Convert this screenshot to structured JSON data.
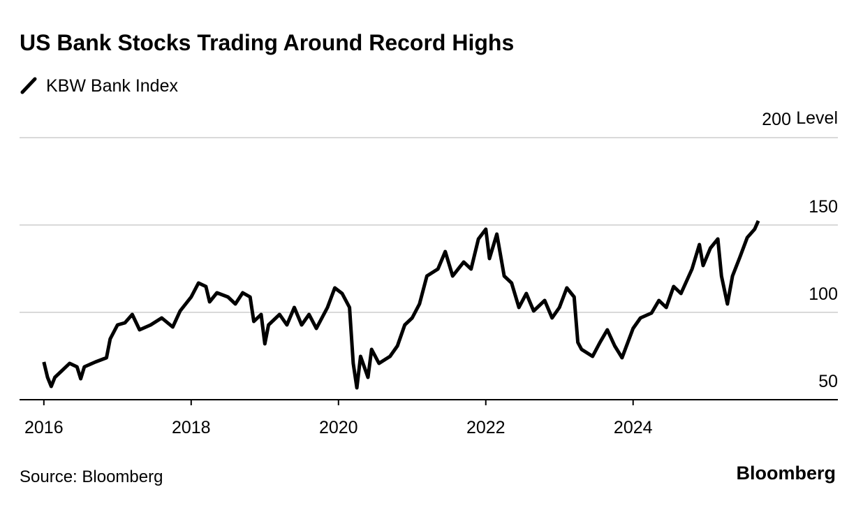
{
  "chart_data": {
    "type": "line",
    "title": "US Bank Stocks Trading Around Record Highs",
    "ylabel": "Level",
    "source": "Source: Bloomberg",
    "logo": "Bloomberg",
    "xlim": [
      2015.67,
      2026.78
    ],
    "xticks": [
      2016,
      2018,
      2020,
      2022,
      2024
    ],
    "ylim": [
      50,
      200
    ],
    "yticks": [
      50,
      100,
      150,
      200
    ],
    "grid": true,
    "series": [
      {
        "name": "KBW Bank Index",
        "color": "#000000",
        "x": [
          2016.0,
          2016.05,
          2016.1,
          2016.15,
          2016.25,
          2016.35,
          2016.45,
          2016.5,
          2016.55,
          2016.7,
          2016.85,
          2016.9,
          2017.0,
          2017.1,
          2017.2,
          2017.3,
          2017.45,
          2017.6,
          2017.75,
          2017.85,
          2018.0,
          2018.1,
          2018.2,
          2018.25,
          2018.35,
          2018.5,
          2018.6,
          2018.7,
          2018.8,
          2018.85,
          2018.95,
          2019.0,
          2019.05,
          2019.2,
          2019.3,
          2019.4,
          2019.5,
          2019.6,
          2019.7,
          2019.85,
          2019.95,
          2020.05,
          2020.15,
          2020.2,
          2020.25,
          2020.3,
          2020.4,
          2020.45,
          2020.55,
          2020.7,
          2020.8,
          2020.9,
          2021.0,
          2021.1,
          2021.2,
          2021.35,
          2021.45,
          2021.55,
          2021.7,
          2021.8,
          2021.9,
          2022.0,
          2022.05,
          2022.15,
          2022.25,
          2022.35,
          2022.45,
          2022.55,
          2022.65,
          2022.8,
          2022.9,
          2023.0,
          2023.1,
          2023.2,
          2023.25,
          2023.3,
          2023.45,
          2023.55,
          2023.65,
          2023.75,
          2023.85,
          2024.0,
          2024.1,
          2024.25,
          2024.35,
          2024.45,
          2024.55,
          2024.65,
          2024.8,
          2024.9,
          2024.95,
          2025.05,
          2025.15,
          2025.2,
          2025.28,
          2025.35,
          2025.45,
          2025.55,
          2025.65,
          2025.7
        ],
        "values": [
          71.6,
          62.8,
          57.6,
          62.8,
          66.8,
          70.8,
          68.8,
          62,
          68.8,
          71.6,
          74,
          84.8,
          92.8,
          94,
          98.8,
          90,
          92.8,
          96.8,
          91.6,
          100.8,
          108.8,
          116.8,
          114.8,
          106,
          111.2,
          108.8,
          104.8,
          111.2,
          108.8,
          94.8,
          98.8,
          82,
          92.8,
          98.8,
          92.8,
          102.8,
          92.8,
          98.8,
          90.8,
          102.8,
          114,
          110.8,
          102.8,
          70.8,
          56.8,
          74.8,
          62.8,
          78.8,
          70.8,
          74.8,
          80.8,
          92.8,
          96.8,
          104.8,
          120.8,
          124.8,
          134.8,
          120.8,
          128.8,
          124.8,
          142,
          147.6,
          130.8,
          144.8,
          120.8,
          116.8,
          102.8,
          110.8,
          100.8,
          106.8,
          96.8,
          102.8,
          114,
          108.8,
          82.8,
          78.8,
          74.8,
          82.8,
          90,
          80.8,
          74,
          90.8,
          96.8,
          99.6,
          106.8,
          102.8,
          114.8,
          110.8,
          124.8,
          138.8,
          126.8,
          136.8,
          142,
          120.8,
          104.8,
          120.8,
          131.6,
          142.8,
          147.6,
          152.4
        ]
      }
    ]
  }
}
